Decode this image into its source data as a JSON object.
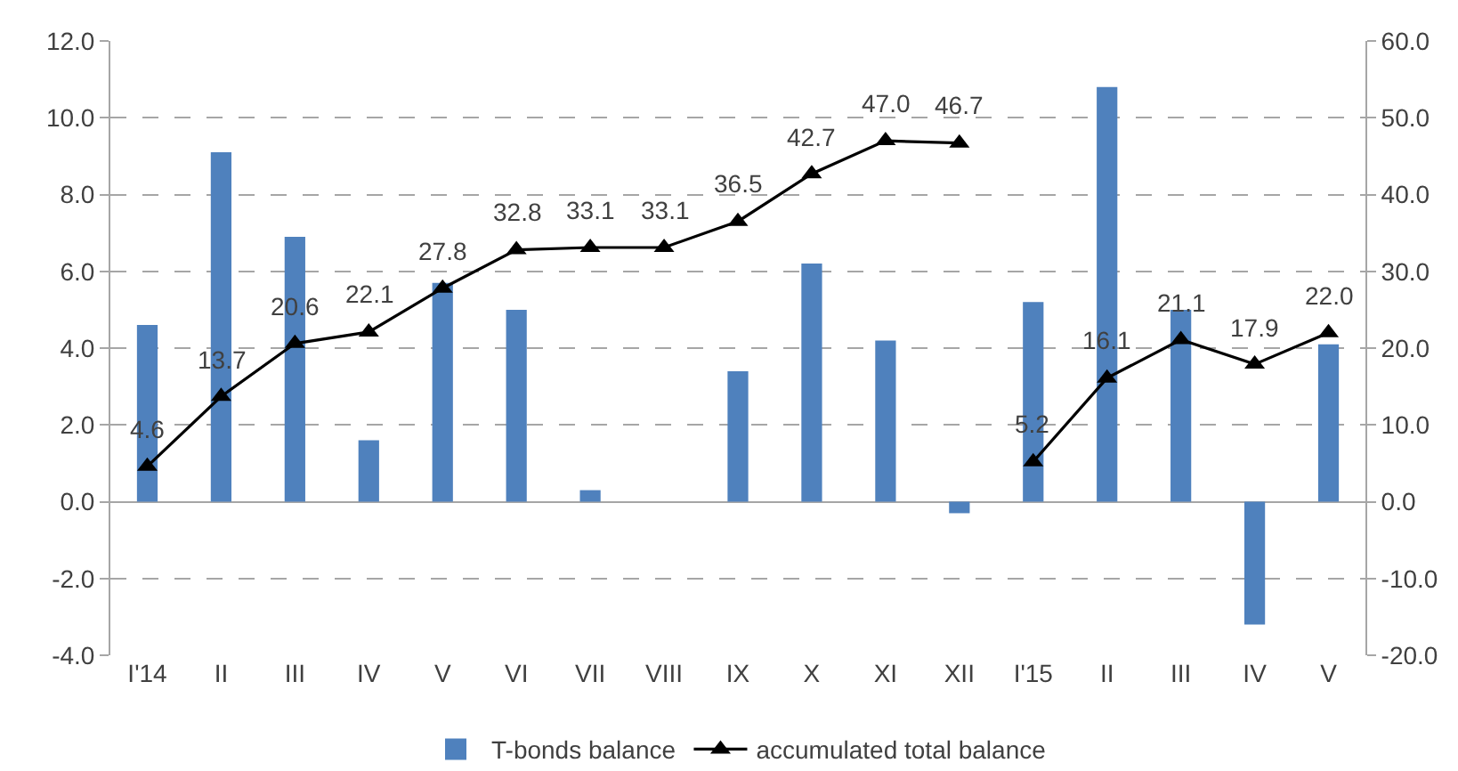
{
  "chart_data": {
    "type": "bar",
    "categories": [
      "I'14",
      "II",
      "III",
      "IV",
      "V",
      "VI",
      "VII",
      "VIII",
      "IX",
      "X",
      "XI",
      "XII",
      "I'15",
      "II",
      "III",
      "IV",
      "V"
    ],
    "series": [
      {
        "name": "T-bonds balance",
        "color": "#4f81bd",
        "values": [
          4.6,
          9.1,
          6.9,
          1.6,
          5.7,
          5.0,
          0.3,
          0.0,
          3.4,
          6.2,
          4.2,
          -0.3,
          5.2,
          10.8,
          5.0,
          -3.2,
          4.1
        ]
      },
      {
        "name": "accumulated total balance",
        "type": "line",
        "axis": "y2",
        "color": "#000000",
        "values": [
          4.6,
          13.7,
          20.6,
          22.1,
          27.8,
          32.8,
          33.1,
          33.1,
          36.5,
          42.7,
          47.0,
          46.7,
          null,
          null,
          null,
          null,
          null
        ],
        "value_labels": [
          "4.6",
          "13.7",
          "20.6",
          "22.1",
          "27.8",
          "32.8",
          "33.1",
          "33.1",
          "36.5",
          "42.7",
          "47.0",
          "46.7",
          null,
          null,
          null,
          null,
          null
        ]
      },
      {
        "type": "line",
        "axis": "y2",
        "color": "#000000",
        "values": [
          null,
          null,
          null,
          null,
          null,
          null,
          null,
          null,
          null,
          null,
          null,
          null,
          5.2,
          16.1,
          21.1,
          17.9,
          22.0
        ],
        "value_labels": [
          null,
          null,
          null,
          null,
          null,
          null,
          null,
          null,
          null,
          null,
          null,
          null,
          "5.2",
          "16.1",
          "21.1",
          "17.9",
          "22.0"
        ]
      }
    ],
    "ylim": [
      -4,
      12
    ],
    "yticks": [
      {
        "value": -4,
        "label": "-4.0"
      },
      {
        "value": -2,
        "label": "-2.0"
      },
      {
        "value": 0,
        "label": "0.0"
      },
      {
        "value": 2,
        "label": "2.0"
      },
      {
        "value": 4,
        "label": "4.0"
      },
      {
        "value": 6,
        "label": "6.0"
      },
      {
        "value": 8,
        "label": "8.0"
      },
      {
        "value": 10,
        "label": "10.0"
      },
      {
        "value": 12,
        "label": "12.0"
      }
    ],
    "y2lim": [
      -20,
      60
    ],
    "y2ticks": [
      {
        "value": -20,
        "label": "-20.0"
      },
      {
        "value": -10,
        "label": "-10.0"
      },
      {
        "value": 0,
        "label": "0.0"
      },
      {
        "value": 10,
        "label": "10.0"
      },
      {
        "value": 20,
        "label": "20.0"
      },
      {
        "value": 30,
        "label": "30.0"
      },
      {
        "value": 40,
        "label": "40.0"
      },
      {
        "value": 50,
        "label": "50.0"
      },
      {
        "value": 60,
        "label": "60.0"
      }
    ],
    "grid": "y",
    "legend": "bottom",
    "marker": "triangle"
  }
}
